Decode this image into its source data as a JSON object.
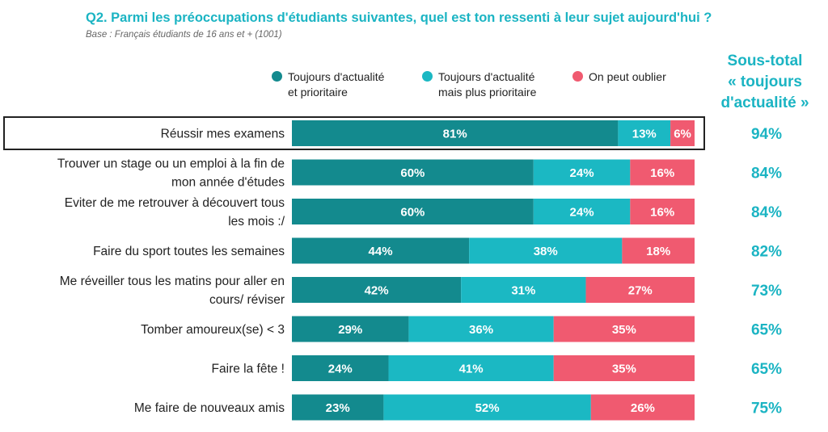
{
  "header": {
    "title": "Q2. Parmi les préoccupations d'étudiants suivantes, quel est ton ressenti à leur sujet aujourd'hui ?",
    "base": "Base : Français étudiants de 16 ans et + (1001)"
  },
  "subtotal_header": [
    "Sous-total",
    "« toujours",
    "d'actualité »"
  ],
  "colors": {
    "accent": "#1bb4c3",
    "dark_teal": "#138a8e",
    "light_teal": "#1bb8c3",
    "pink": "#f05a70"
  },
  "chart_data": {
    "type": "bar",
    "orientation": "horizontal",
    "stacked": true,
    "title": "Q2. Parmi les préoccupations d'étudiants suivantes, quel est ton ressenti à leur sujet aujourd'hui ?",
    "legend_position": "top",
    "xlim": [
      0,
      100
    ],
    "categories": [
      [
        "Réussir mes examens"
      ],
      [
        "Trouver un stage ou un emploi à la fin de",
        "mon année d'études"
      ],
      [
        "Eviter de me retrouver à découvert tous",
        "les mois :/"
      ],
      [
        "Faire du sport toutes les semaines"
      ],
      [
        "Me réveiller tous les matins pour aller en",
        "cours/ réviser"
      ],
      [
        "Tomber amoureux(se) < 3"
      ],
      [
        "Faire la fête !"
      ],
      [
        "Me faire de nouveaux amis"
      ]
    ],
    "series": [
      {
        "name": [
          "Toujours d'actualité",
          "et prioritaire"
        ],
        "color": "#138a8e",
        "values": [
          81,
          60,
          60,
          44,
          42,
          29,
          24,
          23
        ]
      },
      {
        "name": [
          "Toujours d'actualité",
          "mais plus prioritaire"
        ],
        "color": "#1bb8c3",
        "values": [
          13,
          24,
          24,
          38,
          31,
          36,
          41,
          52
        ]
      },
      {
        "name": [
          "On peut oublier"
        ],
        "color": "#f05a70",
        "values": [
          6,
          16,
          16,
          18,
          27,
          35,
          35,
          26
        ]
      }
    ],
    "subtotals": [
      94,
      84,
      84,
      82,
      73,
      65,
      65,
      75
    ],
    "highlighted_category_index": 0
  }
}
